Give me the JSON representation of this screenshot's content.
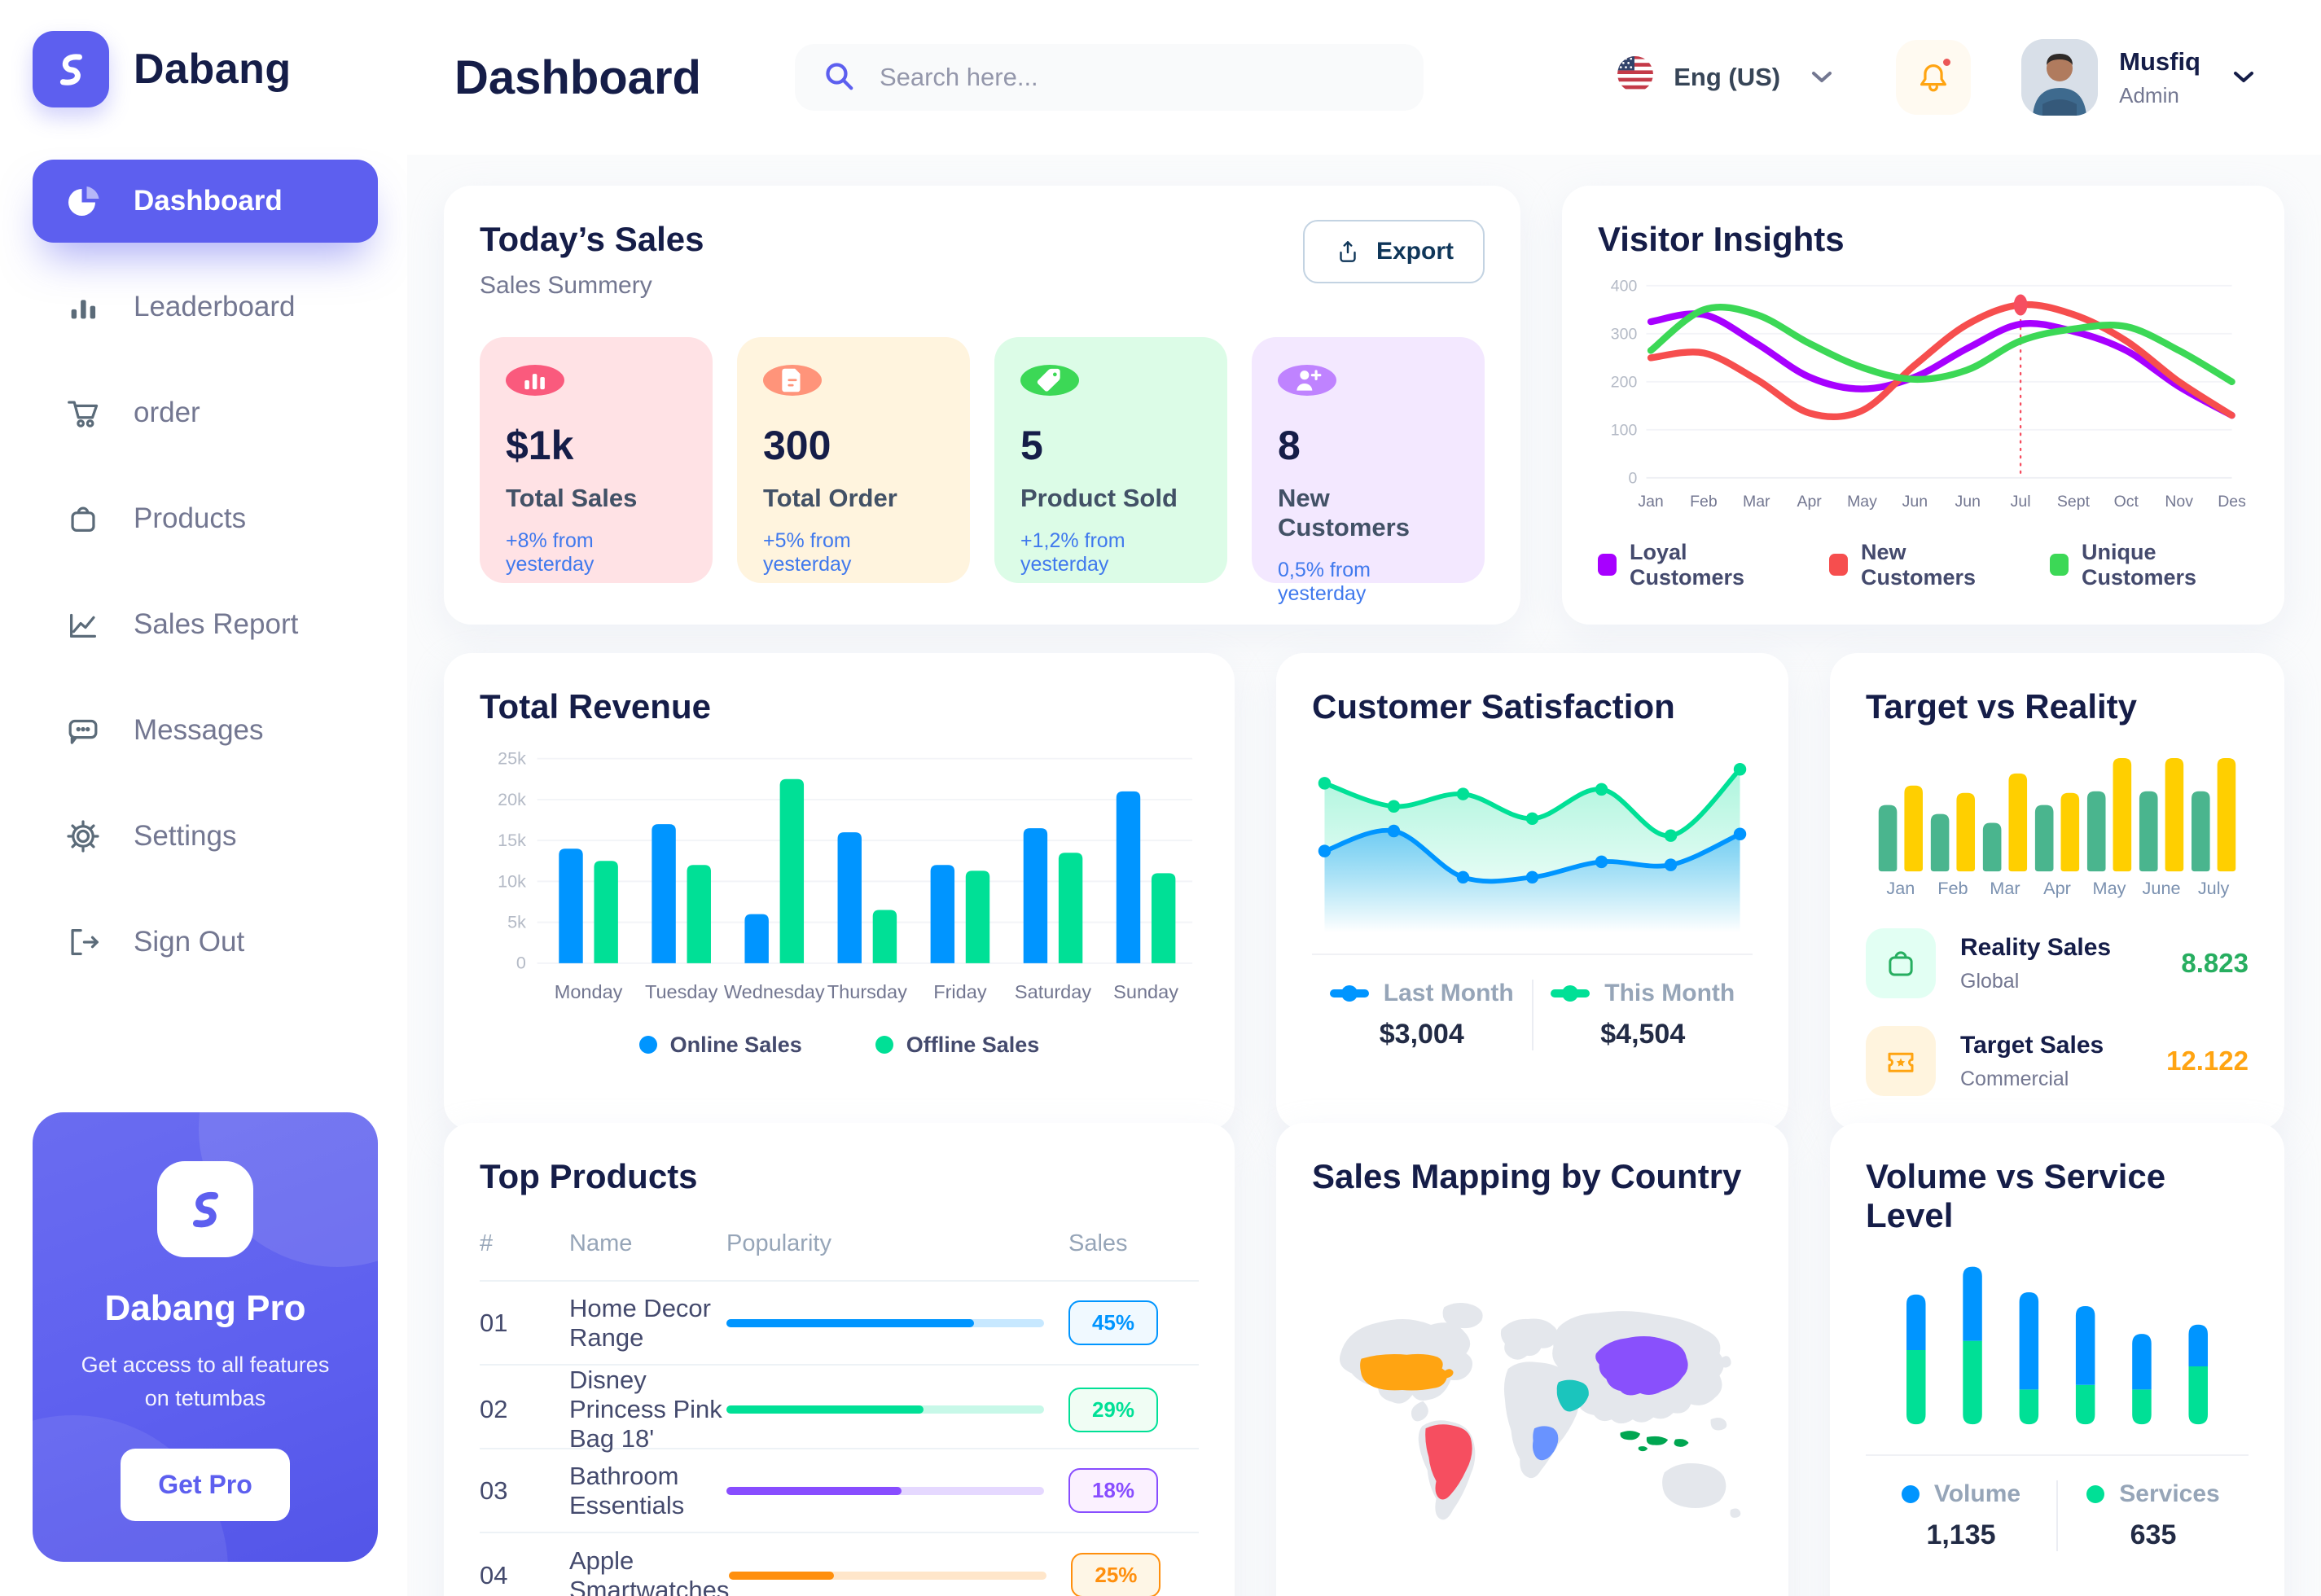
{
  "app": {
    "brand": "Dabang"
  },
  "colors": {
    "primary": "#5D5FEF",
    "title": "#151D48",
    "muted": "#737791",
    "delta_blue": "#4079ED"
  },
  "sidebar": {
    "items": [
      {
        "label": "Dashboard",
        "active": true
      },
      {
        "label": "Leaderboard",
        "active": false
      },
      {
        "label": "order",
        "active": false
      },
      {
        "label": "Products",
        "active": false
      },
      {
        "label": "Sales Report",
        "active": false
      },
      {
        "label": "Messages",
        "active": false
      },
      {
        "label": "Settings",
        "active": false
      },
      {
        "label": "Sign Out",
        "active": false
      }
    ],
    "pro_card": {
      "title": "Dabang Pro",
      "subtitle": "Get access to all features on tetumbas",
      "button": "Get Pro"
    }
  },
  "header": {
    "title": "Dashboard",
    "search_placeholder": "Search here...",
    "language": "Eng (US)",
    "user": {
      "name": "Musfiq",
      "role": "Admin"
    }
  },
  "today_sales": {
    "title": "Today’s Sales",
    "subtitle": "Sales Summery",
    "export_label": "Export",
    "cards": [
      {
        "value": "$1k",
        "label": "Total Sales",
        "delta": "+8% from yesterday",
        "bg": "#FFE2E5",
        "icon_bg": "#FA5A7D",
        "icon": "chart-bar"
      },
      {
        "value": "300",
        "label": "Total Order",
        "delta": "+5% from yesterday",
        "bg": "#FFF4DE",
        "icon_bg": "#FF947A",
        "icon": "receipt"
      },
      {
        "value": "5",
        "label": "Product Sold",
        "delta": "+1,2% from yesterday",
        "bg": "#DCFCE7",
        "icon_bg": "#3CD856",
        "icon": "tag"
      },
      {
        "value": "8",
        "label": "New Customers",
        "delta": "0,5% from yesterday",
        "bg": "#F3E8FF",
        "icon_bg": "#BF83FF",
        "icon": "user-plus"
      }
    ]
  },
  "chart_data": [
    {
      "id": "visitor_insights",
      "type": "line",
      "title": "Visitor Insights",
      "x": [
        "Jan",
        "Feb",
        "Mar",
        "Apr",
        "May",
        "Jun",
        "Jun",
        "Jul",
        "Sept",
        "Oct",
        "Nov",
        "Des"
      ],
      "ylim": [
        0,
        400
      ],
      "yticks": [
        0,
        100,
        200,
        300,
        400
      ],
      "grid": true,
      "legend_position": "bottom",
      "series": [
        {
          "name": "Loyal Customers",
          "color": "#A700FF",
          "values": [
            325,
            340,
            280,
            210,
            185,
            210,
            270,
            320,
            305,
            265,
            190,
            130
          ]
        },
        {
          "name": "New Customers",
          "color": "#F64E4E",
          "values": [
            250,
            260,
            205,
            135,
            140,
            235,
            320,
            360,
            340,
            285,
            200,
            130
          ]
        },
        {
          "name": "Unique Customers",
          "color": "#3CD856",
          "values": [
            265,
            350,
            340,
            280,
            230,
            205,
            225,
            285,
            310,
            315,
            265,
            200
          ]
        }
      ],
      "annotation": {
        "series": "New Customers",
        "month_index": 7,
        "value": 360,
        "marker": true,
        "dashed_line": true
      }
    },
    {
      "id": "total_revenue",
      "type": "bar",
      "title": "Total Revenue",
      "categories": [
        "Monday",
        "Tuesday",
        "Wednesday",
        "Thursday",
        "Friday",
        "Saturday",
        "Sunday"
      ],
      "ylim": [
        0,
        25000
      ],
      "yticks": [
        0,
        5000,
        10000,
        15000,
        20000,
        25000
      ],
      "ytick_labels": [
        "0",
        "5k",
        "10k",
        "15k",
        "20k",
        "25k"
      ],
      "grid": true,
      "legend_position": "bottom",
      "series": [
        {
          "name": "Online Sales",
          "color": "#0095FF",
          "values": [
            14000,
            17000,
            6000,
            16000,
            12000,
            16500,
            21000
          ]
        },
        {
          "name": "Offline Sales",
          "color": "#00E096",
          "values": [
            12500,
            12000,
            22500,
            6500,
            11300,
            13500,
            11000
          ]
        }
      ]
    },
    {
      "id": "customer_satisfaction",
      "type": "area",
      "title": "Customer Satisfaction",
      "ylim": [
        0,
        100
      ],
      "legend_position": "bottom",
      "series": [
        {
          "name": "Last Month",
          "color": "#0095FF",
          "total": "$3,004",
          "values": [
            40,
            53,
            23,
            23,
            33,
            31,
            51
          ]
        },
        {
          "name": "This Month",
          "color": "#00E096",
          "total": "$4,504",
          "values": [
            84,
            69,
            77,
            61,
            80,
            50,
            93
          ]
        }
      ]
    },
    {
      "id": "target_vs_reality",
      "type": "bar",
      "title": "Target vs Reality",
      "categories": [
        "Jan",
        "Feb",
        "Mar",
        "Apr",
        "May",
        "June",
        "July"
      ],
      "ylim": [
        0,
        15
      ],
      "legend_position": "bottom",
      "series": [
        {
          "name": "Reality Sales",
          "color": "#4AB58E",
          "values": [
            8.2,
            7.1,
            6.0,
            8.2,
            9.9,
            9.9,
            9.9
          ]
        },
        {
          "name": "Target Sales",
          "color": "#FFCF00",
          "values": [
            10.6,
            9.7,
            12.1,
            9.7,
            14,
            14,
            14
          ]
        }
      ],
      "legend": [
        {
          "label": "Reality Sales",
          "sub": "Global",
          "value": "8.823",
          "value_color": "#27AE60",
          "icon_bg": "#E2FFF3",
          "icon": "bag-icon"
        },
        {
          "label": "Target Sales",
          "sub": "Commercial",
          "value": "12.122",
          "value_color": "#FFA412",
          "icon_bg": "#FFF4DE",
          "icon": "ticket-icon"
        }
      ]
    },
    {
      "id": "volume_vs_service",
      "type": "stacked-bar",
      "title": "Volume vs Service Level",
      "categories": [
        "1",
        "2",
        "3",
        "4",
        "5",
        "6"
      ],
      "ylim": [
        0,
        75
      ],
      "legend_position": "bottom",
      "stack_order": [
        "Services",
        "Volume"
      ],
      "series": [
        {
          "name": "Volume",
          "color": "#0095FF",
          "total": "1,135",
          "values": [
            24,
            32,
            42,
            34,
            24,
            18
          ]
        },
        {
          "name": "Services",
          "color": "#00E096",
          "total": "635",
          "values": [
            32,
            36,
            15,
            17,
            15,
            25
          ]
        }
      ]
    }
  ],
  "top_products": {
    "title": "Top Products",
    "headers": [
      "#",
      "Name",
      "Popularity",
      "Sales"
    ],
    "rows": [
      {
        "num": "01",
        "name": "Home Decor Range",
        "popularity": 78,
        "sales": "45%",
        "color": "#0095FF",
        "badge_bg": "#F0F9FF"
      },
      {
        "num": "02",
        "name": "Disney Princess Pink Bag 18'",
        "popularity": 62,
        "sales": "29%",
        "color": "#00E096",
        "badge_bg": "#F0FDF4"
      },
      {
        "num": "03",
        "name": "Bathroom Essentials",
        "popularity": 55,
        "sales": "18%",
        "color": "#884DFF",
        "badge_bg": "#FBF1FF"
      },
      {
        "num": "04",
        "name": "Apple Smartwatches",
        "popularity": 33,
        "sales": "25%",
        "color": "#FF8F0D",
        "badge_bg": "#FEF6E6"
      }
    ]
  },
  "sales_map": {
    "title": "Sales Mapping by Country",
    "countries": [
      {
        "name": "United States",
        "color": "#FFA412"
      },
      {
        "name": "Brazil",
        "color": "#F64E60"
      },
      {
        "name": "China",
        "color": "#8950FC"
      },
      {
        "name": "Saudi Arabia",
        "color": "#1BC5BD"
      },
      {
        "name": "DR Congo",
        "color": "#6993FF"
      },
      {
        "name": "Indonesia",
        "color": "#00A651"
      }
    ]
  }
}
